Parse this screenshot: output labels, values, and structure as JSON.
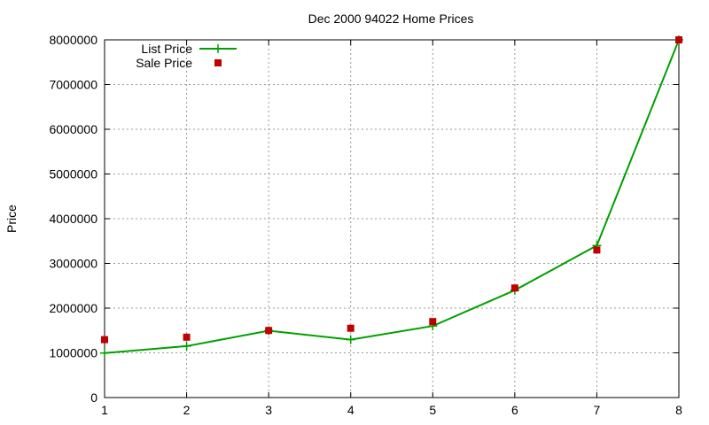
{
  "chart_data": {
    "type": "line",
    "title": "Dec 2000 94022 Home Prices",
    "xlabel": "",
    "ylabel": "Price",
    "x": [
      1,
      2,
      3,
      4,
      5,
      6,
      7,
      8
    ],
    "xlim": [
      1,
      8
    ],
    "ylim": [
      0,
      8000000
    ],
    "xticks": [
      "1",
      "2",
      "3",
      "4",
      "5",
      "6",
      "7",
      "8"
    ],
    "yticks": [
      "0",
      "1000000",
      "2000000",
      "3000000",
      "4000000",
      "5000000",
      "6000000",
      "7000000",
      "8000000"
    ],
    "grid": true,
    "legend": "top-left",
    "series": [
      {
        "name": "List Price",
        "style": "line+cross",
        "color": "#00a000",
        "values": [
          995000,
          1150000,
          1495000,
          1295000,
          1600000,
          2400000,
          3400000,
          8000000
        ]
      },
      {
        "name": "Sale Price",
        "style": "square",
        "color": "#c00000",
        "values": [
          1295000,
          1350000,
          1500000,
          1550000,
          1700000,
          2450000,
          3300000,
          8000000
        ]
      }
    ]
  }
}
